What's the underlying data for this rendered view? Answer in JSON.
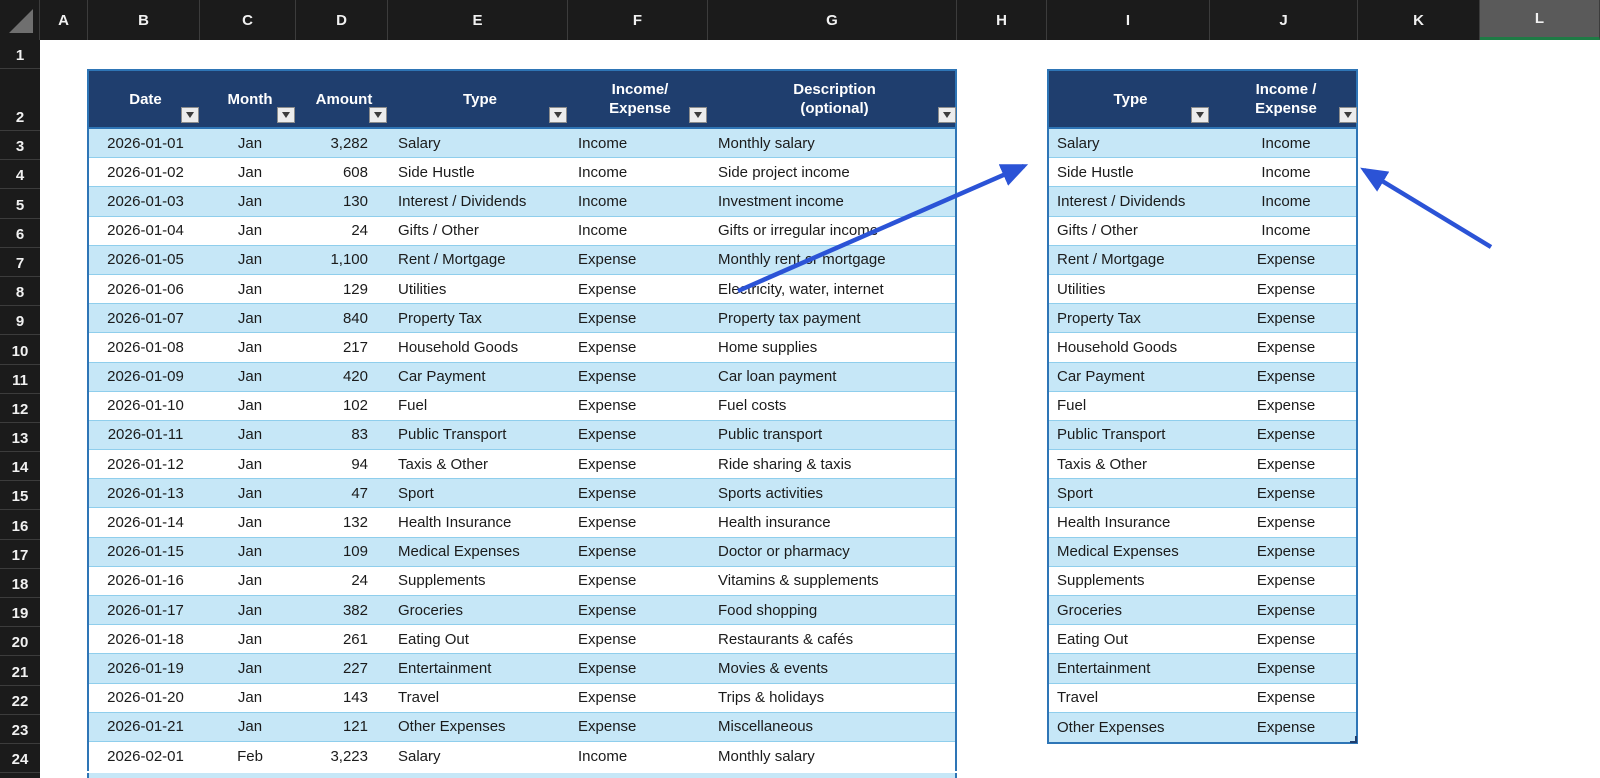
{
  "spreadsheet": {
    "column_letters": [
      "A",
      "B",
      "C",
      "D",
      "E",
      "F",
      "G",
      "H",
      "I",
      "J",
      "K",
      "L"
    ],
    "selected_column": "L",
    "row_numbers": [
      "1",
      "2",
      "3",
      "4",
      "5",
      "6",
      "7",
      "8",
      "9",
      "10",
      "11",
      "12",
      "13",
      "14",
      "15",
      "16",
      "17",
      "18",
      "19",
      "20",
      "21",
      "22",
      "23",
      "24"
    ],
    "colors": {
      "header_bar_fill": "#1B1B1B",
      "selected_column_fill": "#5A5A5A",
      "selected_column_underline": "#1E7B45",
      "table_header_fill": "#1F3E6E",
      "table_border": "#2E75B6",
      "banded_row_fill": "#C6E7F7",
      "row_separator": "#8FCEEC",
      "arrow_blue": "#2B53D6"
    }
  },
  "main_table": {
    "headers": [
      {
        "lines": [
          "Date"
        ]
      },
      {
        "lines": [
          "Month"
        ]
      },
      {
        "lines": [
          "Amount"
        ]
      },
      {
        "lines": [
          "Type"
        ]
      },
      {
        "lines": [
          "Income/",
          "Expense"
        ]
      },
      {
        "lines": [
          "Description",
          "(optional)"
        ]
      }
    ],
    "rows": [
      {
        "date": "2026-01-01",
        "month": "Jan",
        "amount": "3,282",
        "type": "Salary",
        "flow": "Income",
        "description": "Monthly salary"
      },
      {
        "date": "2026-01-02",
        "month": "Jan",
        "amount": "608",
        "type": "Side Hustle",
        "flow": "Income",
        "description": "Side project income"
      },
      {
        "date": "2026-01-03",
        "month": "Jan",
        "amount": "130",
        "type": "Interest / Dividends",
        "flow": "Income",
        "description": "Investment income"
      },
      {
        "date": "2026-01-04",
        "month": "Jan",
        "amount": "24",
        "type": "Gifts / Other",
        "flow": "Income",
        "description": "Gifts or irregular income"
      },
      {
        "date": "2026-01-05",
        "month": "Jan",
        "amount": "1,100",
        "type": "Rent / Mortgage",
        "flow": "Expense",
        "description": "Monthly rent or mortgage"
      },
      {
        "date": "2026-01-06",
        "month": "Jan",
        "amount": "129",
        "type": "Utilities",
        "flow": "Expense",
        "description": "Electricity, water, internet"
      },
      {
        "date": "2026-01-07",
        "month": "Jan",
        "amount": "840",
        "type": "Property Tax",
        "flow": "Expense",
        "description": "Property tax payment"
      },
      {
        "date": "2026-01-08",
        "month": "Jan",
        "amount": "217",
        "type": "Household Goods",
        "flow": "Expense",
        "description": "Home supplies"
      },
      {
        "date": "2026-01-09",
        "month": "Jan",
        "amount": "420",
        "type": "Car Payment",
        "flow": "Expense",
        "description": "Car loan payment"
      },
      {
        "date": "2026-01-10",
        "month": "Jan",
        "amount": "102",
        "type": "Fuel",
        "flow": "Expense",
        "description": "Fuel costs"
      },
      {
        "date": "2026-01-11",
        "month": "Jan",
        "amount": "83",
        "type": "Public Transport",
        "flow": "Expense",
        "description": "Public transport"
      },
      {
        "date": "2026-01-12",
        "month": "Jan",
        "amount": "94",
        "type": "Taxis & Other",
        "flow": "Expense",
        "description": "Ride sharing & taxis"
      },
      {
        "date": "2026-01-13",
        "month": "Jan",
        "amount": "47",
        "type": "Sport",
        "flow": "Expense",
        "description": "Sports activities"
      },
      {
        "date": "2026-01-14",
        "month": "Jan",
        "amount": "132",
        "type": "Health Insurance",
        "flow": "Expense",
        "description": "Health insurance"
      },
      {
        "date": "2026-01-15",
        "month": "Jan",
        "amount": "109",
        "type": "Medical Expenses",
        "flow": "Expense",
        "description": "Doctor or pharmacy"
      },
      {
        "date": "2026-01-16",
        "month": "Jan",
        "amount": "24",
        "type": "Supplements",
        "flow": "Expense",
        "description": "Vitamins & supplements"
      },
      {
        "date": "2026-01-17",
        "month": "Jan",
        "amount": "382",
        "type": "Groceries",
        "flow": "Expense",
        "description": "Food shopping"
      },
      {
        "date": "2026-01-18",
        "month": "Jan",
        "amount": "261",
        "type": "Eating Out",
        "flow": "Expense",
        "description": "Restaurants & cafés"
      },
      {
        "date": "2026-01-19",
        "month": "Jan",
        "amount": "227",
        "type": "Entertainment",
        "flow": "Expense",
        "description": "Movies & events"
      },
      {
        "date": "2026-01-20",
        "month": "Jan",
        "amount": "143",
        "type": "Travel",
        "flow": "Expense",
        "description": "Trips & holidays"
      },
      {
        "date": "2026-01-21",
        "month": "Jan",
        "amount": "121",
        "type": "Other Expenses",
        "flow": "Expense",
        "description": "Miscellaneous"
      },
      {
        "date": "2026-02-01",
        "month": "Feb",
        "amount": "3,223",
        "type": "Salary",
        "flow": "Income",
        "description": "Monthly salary"
      }
    ]
  },
  "lookup_table": {
    "headers": [
      {
        "lines": [
          "Type"
        ]
      },
      {
        "lines": [
          "Income /",
          "Expense"
        ]
      }
    ],
    "rows": [
      {
        "type": "Salary",
        "flow": "Income"
      },
      {
        "type": "Side Hustle",
        "flow": "Income"
      },
      {
        "type": "Interest / Dividends",
        "flow": "Income"
      },
      {
        "type": "Gifts / Other",
        "flow": "Income"
      },
      {
        "type": "Rent / Mortgage",
        "flow": "Expense"
      },
      {
        "type": "Utilities",
        "flow": "Expense"
      },
      {
        "type": "Property Tax",
        "flow": "Expense"
      },
      {
        "type": "Household Goods",
        "flow": "Expense"
      },
      {
        "type": "Car Payment",
        "flow": "Expense"
      },
      {
        "type": "Fuel",
        "flow": "Expense"
      },
      {
        "type": "Public Transport",
        "flow": "Expense"
      },
      {
        "type": "Taxis & Other",
        "flow": "Expense"
      },
      {
        "type": "Sport",
        "flow": "Expense"
      },
      {
        "type": "Health Insurance",
        "flow": "Expense"
      },
      {
        "type": "Medical Expenses",
        "flow": "Expense"
      },
      {
        "type": "Supplements",
        "flow": "Expense"
      },
      {
        "type": "Groceries",
        "flow": "Expense"
      },
      {
        "type": "Eating Out",
        "flow": "Expense"
      },
      {
        "type": "Entertainment",
        "flow": "Expense"
      },
      {
        "type": "Travel",
        "flow": "Expense"
      },
      {
        "type": "Other Expenses",
        "flow": "Expense"
      }
    ]
  }
}
